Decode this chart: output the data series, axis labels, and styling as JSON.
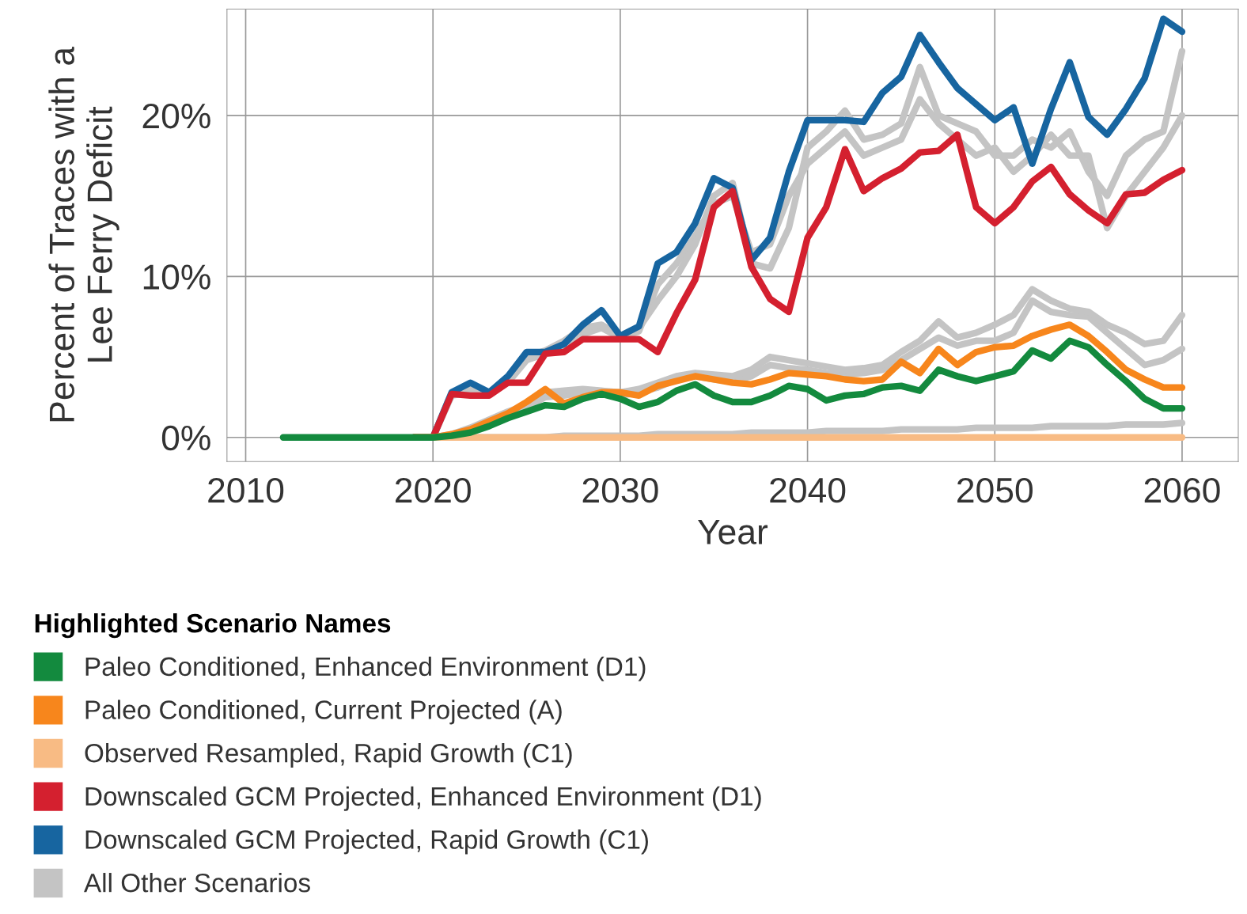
{
  "chart_data": {
    "type": "line",
    "xlabel": "Year",
    "ylabel": "Percent of Traces with a\nLee Ferry Deficit",
    "legend_title": "Highlighted Scenario Names",
    "x": [
      2012,
      2013,
      2014,
      2015,
      2016,
      2017,
      2018,
      2019,
      2020,
      2021,
      2022,
      2023,
      2024,
      2025,
      2026,
      2027,
      2028,
      2029,
      2030,
      2031,
      2032,
      2033,
      2034,
      2035,
      2036,
      2037,
      2038,
      2039,
      2040,
      2041,
      2042,
      2043,
      2044,
      2045,
      2046,
      2047,
      2048,
      2049,
      2050,
      2051,
      2052,
      2053,
      2054,
      2055,
      2056,
      2057,
      2058,
      2059,
      2060
    ],
    "xlim": [
      2009,
      2063
    ],
    "xticks": [
      2010,
      2020,
      2030,
      2040,
      2050,
      2060
    ],
    "ylim": [
      -1.5,
      26.6
    ],
    "yticks": [
      {
        "value": 0,
        "label": "0%"
      },
      {
        "value": 10,
        "label": "10%"
      },
      {
        "value": 20,
        "label": "20%"
      }
    ],
    "grid": true,
    "legend": "bottom",
    "marker": "none",
    "line_style": "solid",
    "series": [
      {
        "name": "Paleo Conditioned, Enhanced Environment (D1)",
        "color": "#138a3e",
        "values": [
          0,
          0,
          0,
          0,
          0,
          0,
          0,
          0,
          0,
          0.1,
          0.3,
          0.7,
          1.2,
          1.6,
          2.0,
          1.9,
          2.4,
          2.7,
          2.4,
          1.9,
          2.2,
          2.9,
          3.3,
          2.6,
          2.2,
          2.2,
          2.6,
          3.2,
          3.0,
          2.3,
          2.6,
          2.7,
          3.1,
          3.2,
          2.9,
          4.2,
          3.8,
          3.5,
          3.8,
          4.1,
          5.4,
          4.9,
          6.0,
          5.6,
          4.5,
          3.5,
          2.4,
          1.8,
          1.8
        ]
      },
      {
        "name": "Paleo Conditioned, Current Projected (A)",
        "color": "#f7861c",
        "values": [
          null,
          null,
          null,
          null,
          null,
          null,
          null,
          0,
          0,
          0.2,
          0.5,
          1.0,
          1.5,
          2.2,
          3.0,
          2.1,
          2.5,
          2.8,
          2.8,
          2.6,
          3.2,
          3.5,
          3.8,
          3.6,
          3.4,
          3.3,
          3.6,
          4.0,
          3.9,
          3.8,
          3.6,
          3.5,
          3.6,
          4.7,
          4.0,
          5.5,
          4.5,
          5.3,
          5.6,
          5.7,
          6.3,
          6.7,
          7.0,
          6.3,
          5.3,
          4.2,
          3.6,
          3.1,
          3.1
        ]
      },
      {
        "name": "Observed Resampled, Rapid Growth (C1)",
        "color": "#f8bb84",
        "values": [
          null,
          null,
          null,
          null,
          null,
          null,
          null,
          0,
          0,
          0,
          0,
          0,
          0,
          0,
          0,
          0,
          0,
          0,
          0,
          0,
          0,
          0,
          0,
          0,
          0,
          0,
          0,
          0,
          0,
          0,
          0,
          0,
          0,
          0,
          0,
          0,
          0,
          0,
          0,
          0,
          0,
          0,
          0,
          0,
          0,
          0,
          0,
          0,
          0
        ]
      },
      {
        "name": "Downscaled GCM Projected, Enhanced Environment (D1)",
        "color": "#d4202f",
        "values": [
          null,
          null,
          null,
          null,
          null,
          null,
          null,
          0,
          0,
          2.7,
          2.6,
          2.6,
          3.4,
          3.4,
          5.2,
          5.3,
          6.1,
          6.1,
          6.1,
          6.1,
          5.3,
          7.7,
          9.8,
          14.3,
          15.3,
          10.6,
          8.6,
          7.8,
          12.4,
          14.3,
          17.9,
          15.3,
          16.1,
          16.7,
          17.7,
          17.8,
          18.8,
          14.3,
          13.3,
          14.3,
          15.9,
          16.8,
          15.1,
          14.1,
          13.3,
          15.1,
          15.2,
          16.0,
          16.6
        ]
      },
      {
        "name": "Downscaled GCM Projected, Rapid Growth (C1)",
        "color": "#1765a0",
        "values": [
          null,
          null,
          null,
          null,
          null,
          null,
          null,
          0,
          0,
          2.8,
          3.4,
          2.8,
          3.8,
          5.3,
          5.3,
          5.8,
          7.0,
          7.9,
          6.3,
          6.9,
          10.8,
          11.5,
          13.3,
          16.1,
          15.5,
          11.0,
          12.4,
          16.5,
          19.7,
          19.7,
          19.7,
          19.6,
          21.4,
          22.4,
          25.0,
          23.3,
          21.7,
          20.7,
          19.7,
          20.5,
          17.0,
          20.4,
          23.3,
          19.9,
          18.8,
          20.4,
          22.3,
          26.0,
          25.2
        ]
      },
      {
        "name": "All Other Scenarios",
        "color": "#c4c4c4",
        "values": [
          null,
          null,
          null,
          null,
          null,
          null,
          null,
          0,
          0,
          2.8,
          3.0,
          2.8,
          3.6,
          5.0,
          5.4,
          6.0,
          6.8,
          7.0,
          6.3,
          6.8,
          8.5,
          10.0,
          12.0,
          15.0,
          15.8,
          10.8,
          10.5,
          13.0,
          18.0,
          19.0,
          20.3,
          18.5,
          18.8,
          19.5,
          23.0,
          20.0,
          19.5,
          19.0,
          17.5,
          17.5,
          18.5,
          18.0,
          19.0,
          16.5,
          15.0,
          17.5,
          18.5,
          19.0,
          24.0
        ]
      },
      {
        "color": "#c4c4c4",
        "values": [
          null,
          null,
          null,
          null,
          null,
          null,
          null,
          0,
          0,
          2.6,
          2.8,
          2.7,
          3.4,
          4.8,
          5.2,
          5.7,
          6.4,
          6.8,
          6.2,
          6.6,
          9.5,
          10.8,
          12.5,
          14.5,
          15.0,
          11.5,
          12.0,
          15.0,
          17.0,
          18.0,
          19.0,
          17.5,
          18.0,
          18.5,
          21.0,
          19.5,
          18.5,
          17.5,
          18.0,
          16.5,
          17.5,
          18.8,
          17.5,
          17.5,
          13.0,
          15.0,
          16.5,
          18.0,
          20.0
        ]
      },
      {
        "color": "#c4c4c4",
        "values": [
          null,
          null,
          null,
          null,
          null,
          null,
          null,
          0,
          0,
          0.2,
          0.6,
          1.1,
          1.6,
          2.0,
          2.8,
          2.9,
          3.0,
          2.9,
          2.8,
          3.0,
          3.4,
          3.8,
          4.0,
          3.9,
          3.8,
          4.2,
          5.0,
          4.8,
          4.6,
          4.4,
          4.2,
          4.3,
          4.5,
          5.3,
          6.0,
          7.2,
          6.2,
          6.5,
          7.0,
          7.6,
          9.2,
          8.5,
          8.0,
          7.8,
          7.0,
          6.5,
          5.8,
          6.0,
          7.6
        ]
      },
      {
        "color": "#c4c4c4",
        "values": [
          null,
          null,
          null,
          null,
          null,
          null,
          null,
          0,
          0,
          0.1,
          0.4,
          0.9,
          1.4,
          1.9,
          2.5,
          2.6,
          2.8,
          2.7,
          2.6,
          2.8,
          3.1,
          3.6,
          3.8,
          3.6,
          3.5,
          3.8,
          4.5,
          4.3,
          4.2,
          4.0,
          3.9,
          4.0,
          4.2,
          4.8,
          5.5,
          6.2,
          5.7,
          6.0,
          6.0,
          6.5,
          8.5,
          7.8,
          7.6,
          7.5,
          6.5,
          5.5,
          4.5,
          4.8,
          5.5
        ]
      },
      {
        "color": "#c4c4c4",
        "values": [
          null,
          null,
          null,
          null,
          null,
          null,
          null,
          0,
          0,
          0,
          0,
          0,
          0,
          0,
          0,
          0.1,
          0.1,
          0.1,
          0.1,
          0.1,
          0.2,
          0.2,
          0.2,
          0.2,
          0.2,
          0.3,
          0.3,
          0.3,
          0.3,
          0.4,
          0.4,
          0.4,
          0.4,
          0.5,
          0.5,
          0.5,
          0.5,
          0.6,
          0.6,
          0.6,
          0.6,
          0.7,
          0.7,
          0.7,
          0.7,
          0.8,
          0.8,
          0.8,
          0.9
        ]
      }
    ]
  }
}
